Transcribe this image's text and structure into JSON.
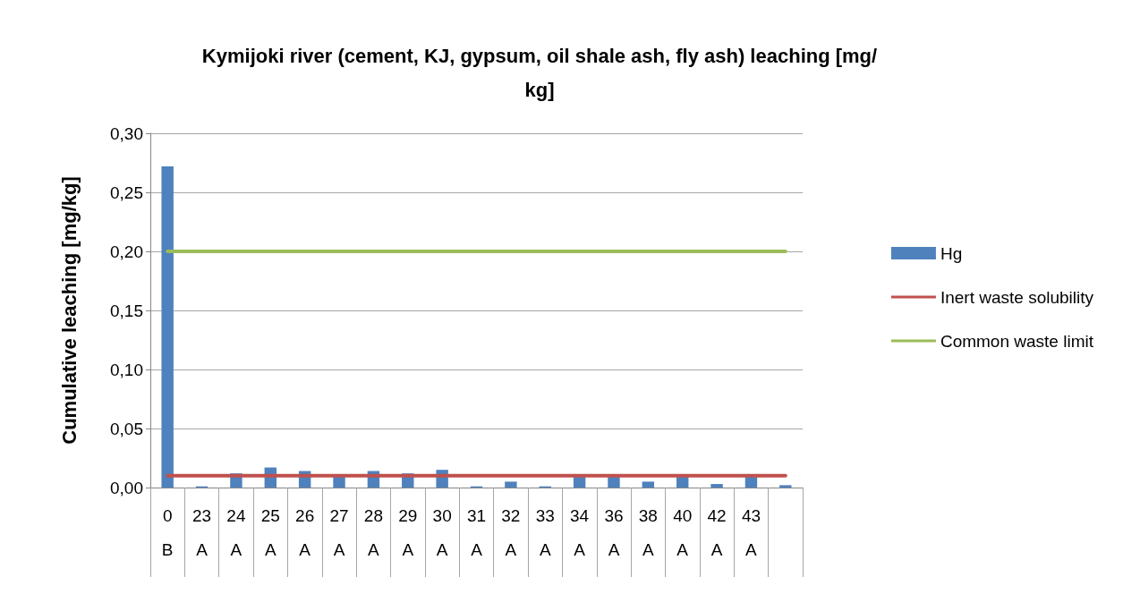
{
  "chart_data": {
    "type": "bar",
    "title": "Kymijoki river (cement, KJ, gypsum, oil shale ash, fly ash) leaching [mg/kg]",
    "ylabel": "Cumulative leaching [mg/kg]",
    "categories": [
      "0\nB",
      "23\nA",
      "24\nA",
      "25\nA",
      "26\nA",
      "27\nA",
      "28\nA",
      "29\nA",
      "30\nA",
      "31\nA",
      "32\nA",
      "33\nA",
      "34\nA",
      "36\nA",
      "38\nA",
      "40\nA",
      "42\nA",
      "43\nA",
      null
    ],
    "series": [
      {
        "name": "Hg",
        "color": "#4f81bd",
        "values": [
          0.272,
          0.001,
          0.012,
          0.017,
          0.014,
          0.009,
          0.014,
          0.012,
          0.015,
          0.001,
          0.005,
          0.001,
          0.009,
          0.009,
          0.005,
          0.009,
          0.003,
          0.009,
          0.002
        ]
      },
      {
        "name": "Inert waste solubility",
        "type": "line",
        "color": "#c0504d",
        "values": [
          0.01,
          0.01,
          0.01,
          0.01,
          0.01,
          0.01,
          0.01,
          0.01,
          0.01,
          0.01,
          0.01,
          0.01,
          0.01,
          0.01,
          0.01,
          0.01,
          0.01,
          0.01,
          0.01
        ]
      },
      {
        "name": "Common waste limit",
        "type": "line",
        "color": "#9bbb59",
        "values": [
          0.2,
          0.2,
          0.2,
          0.2,
          0.2,
          0.2,
          0.2,
          0.2,
          0.2,
          0.2,
          0.2,
          0.2,
          0.2,
          0.2,
          0.2,
          0.2,
          0.2,
          0.2,
          0.2
        ]
      }
    ],
    "ylim": [
      0,
      0.3
    ],
    "yticks": [
      {
        "value": 0,
        "label": "0,00"
      },
      {
        "value": 0.05,
        "label": "0,05"
      },
      {
        "value": 0.1,
        "label": "0,10"
      },
      {
        "value": 0.15,
        "label": "0,15"
      },
      {
        "value": 0.2,
        "label": "0,20"
      },
      {
        "value": 0.25,
        "label": "0,25"
      },
      {
        "value": 0.3,
        "label": "0,30"
      }
    ],
    "grid": "y",
    "legend": "right",
    "marker": "none"
  }
}
